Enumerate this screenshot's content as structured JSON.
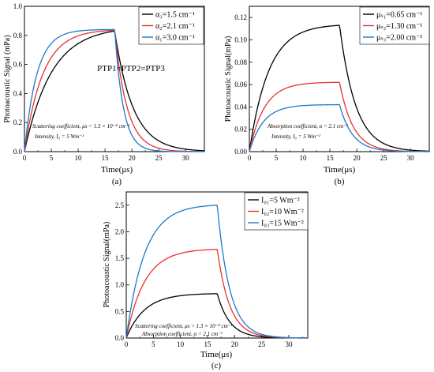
{
  "panels": [
    {
      "id": "a",
      "panel_label": "(a)",
      "annotation": "PTP1=PTP2=PTP3",
      "notes": [
        "Scattering coefficient, μs = 1.3 × 10⁻⁴ cm⁻¹",
        "Intensity, I₀ = 5 Wm⁻²"
      ]
    },
    {
      "id": "b",
      "panel_label": "(b)",
      "annotation": "",
      "notes": [
        "Absorption coefficient, α = 2.1 cm⁻¹",
        "Intensity, I₀ = 5 Wm⁻²"
      ]
    },
    {
      "id": "c",
      "panel_label": "(c)",
      "annotation": "",
      "notes": [
        "Scattering coefficient, μs = 1.3 × 10⁻⁴ cm⁻¹",
        "Absorption coefficient, α = 2.1 cm⁻¹"
      ]
    }
  ],
  "colors": {
    "black": "#000000",
    "red": "#e8312c",
    "blue": "#1f78c8"
  },
  "chart_data": [
    {
      "type": "line",
      "title": "",
      "xlabel": "Time(μs)",
      "ylabel": "Photoacoustic Signal (mPa)",
      "xlim": [
        0,
        33.5
      ],
      "ylim": [
        0,
        1.0
      ],
      "xticks": [
        0,
        5,
        10,
        15,
        20,
        25,
        30
      ],
      "yticks": [
        0.0,
        0.2,
        0.4,
        0.6,
        0.8,
        1.0
      ],
      "ytick_labels": [
        "0.0",
        "0.2",
        "0.4",
        "0.6",
        "0.8",
        "1.0"
      ],
      "grid": false,
      "legend_position": "top-right",
      "model": "rise-decay",
      "pulse_end": 16.8,
      "series": [
        {
          "name": "α₃=1.5 cm⁻¹",
          "color": "#000000",
          "peak": 0.83,
          "rise_tau": 5.0,
          "decay_tau": 3.4
        },
        {
          "name": "α₂=2.1 cm⁻¹",
          "color": "#e8312c",
          "peak": 0.835,
          "rise_tau": 3.4,
          "decay_tau": 2.3
        },
        {
          "name": "α₁=3.0 cm⁻¹",
          "color": "#1f78c8",
          "peak": 0.84,
          "rise_tau": 2.3,
          "decay_tau": 1.6
        }
      ]
    },
    {
      "type": "line",
      "title": "",
      "xlabel": "Time(μs)",
      "ylabel": "Photoacoustic Signal(mPa)",
      "xlim": [
        0,
        33.5
      ],
      "ylim": [
        0,
        0.13
      ],
      "xticks": [
        0,
        5,
        10,
        15,
        20,
        25,
        30
      ],
      "yticks": [
        0.0,
        0.02,
        0.04,
        0.06,
        0.08,
        0.1,
        0.12
      ],
      "ytick_labels": [
        "0.00",
        "0.02",
        "0.04",
        "0.06",
        "0.08",
        "0.10",
        "0.12"
      ],
      "grid": false,
      "legend_position": "top-right",
      "model": "rise-decay",
      "pulse_end": 16.8,
      "series": [
        {
          "name": "μₛ₁=0.65 cm⁻¹",
          "color": "#000000",
          "peak": 0.113,
          "rise_tau": 3.6,
          "decay_tau": 3.0
        },
        {
          "name": "μₛ₂=1.30 cm⁻¹",
          "color": "#e8312c",
          "peak": 0.062,
          "rise_tau": 2.8,
          "decay_tau": 2.5
        },
        {
          "name": "μₛ₃=2.00 cm⁻¹",
          "color": "#1f78c8",
          "peak": 0.042,
          "rise_tau": 2.6,
          "decay_tau": 2.4
        }
      ]
    },
    {
      "type": "line",
      "title": "",
      "xlabel": "Time(μs)",
      "ylabel": "Photoacoustic Signal(mPa)",
      "xlim": [
        0,
        33.5
      ],
      "ylim": [
        0,
        2.75
      ],
      "xticks": [
        0,
        5,
        10,
        15,
        20,
        25,
        30
      ],
      "yticks": [
        0.0,
        0.5,
        1.0,
        1.5,
        2.0,
        2.5
      ],
      "ytick_labels": [
        "0.0",
        "0.5",
        "1.0",
        "1.5",
        "2.0",
        "2.5"
      ],
      "grid": false,
      "legend_position": "top-right",
      "model": "rise-decay",
      "pulse_end": 16.8,
      "series": [
        {
          "name": "I₀₁=5 Wm⁻²",
          "color": "#000000",
          "peak": 0.835,
          "rise_tau": 3.4,
          "decay_tau": 2.3
        },
        {
          "name": "I₀₂=10 Wm⁻²",
          "color": "#e8312c",
          "peak": 1.67,
          "rise_tau": 3.4,
          "decay_tau": 2.3
        },
        {
          "name": "I₀₃=15 Wm⁻²",
          "color": "#1f78c8",
          "peak": 2.5,
          "rise_tau": 3.4,
          "decay_tau": 2.3
        }
      ]
    }
  ]
}
